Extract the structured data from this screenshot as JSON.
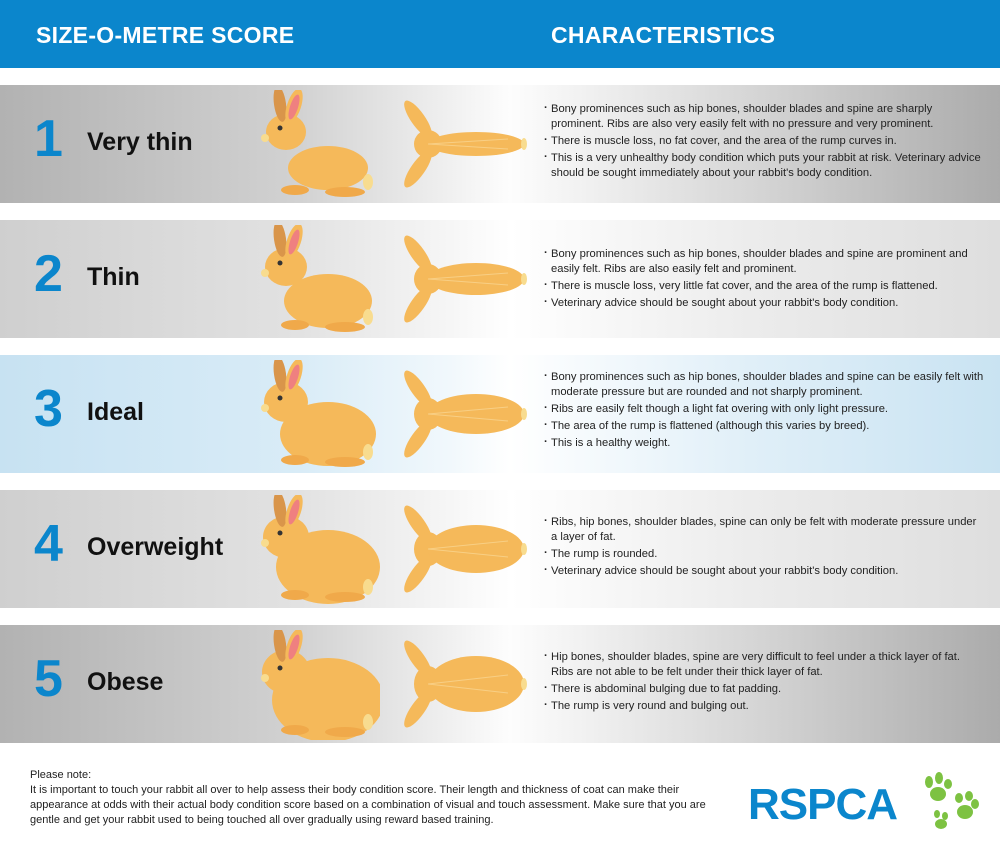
{
  "header": {
    "score_title": "SIZE-O-METRE SCORE",
    "characteristics_title": "CHARACTERISTICS",
    "color": "#0b86cc"
  },
  "rows": [
    {
      "score": "1",
      "label": "Very thin",
      "bullets": [
        "Bony prominences such as hip bones, shoulder blades and spine are sharply prominent. Ribs are also very easily felt with no pressure and very prominent.",
        "There is muscle loss, no fat cover, and the area of the rump curves in.",
        "This is a very unhealthy body condition which puts your rabbit at risk. Veterinary advice should be sought immediately about your rabbit's body condition."
      ]
    },
    {
      "score": "2",
      "label": "Thin",
      "bullets": [
        "Bony prominences such as hip bones, shoulder blades and spine are prominent and easily felt. Ribs are also easily felt and prominent.",
        "There is muscle loss, very little fat cover, and the area of the rump is flattened.",
        "Veterinary advice should be sought about your rabbit's body condition."
      ]
    },
    {
      "score": "3",
      "label": "Ideal",
      "bullets": [
        "Bony prominences such as hip bones, shoulder blades and spine can be easily felt with moderate pressure but are rounded and not sharply prominent.",
        "Ribs are easily felt though a light fat overing with only light pressure.",
        "The area of the rump is flattened (although this varies by breed).",
        "This is a healthy weight."
      ]
    },
    {
      "score": "4",
      "label": "Overweight",
      "bullets": [
        "Ribs, hip bones, shoulder blades, spine can only be felt with moderate pressure under a layer of fat.",
        "The rump is rounded.",
        "Veterinary advice should be sought about your rabbit's body condition."
      ]
    },
    {
      "score": "5",
      "label": "Obese",
      "bullets": [
        "Hip bones, shoulder blades, spine are very difficult to feel under a thick layer of fat. Ribs are not able to be felt under their thick layer of fat.",
        "There is abdominal bulging due to fat padding.",
        "The rump is very round and bulging out."
      ]
    }
  ],
  "note": {
    "heading": "Please note:",
    "text": "It is important to touch your rabbit all over to help assess their body condition score. Their length and thickness of coat can make their appearance at odds with their actual body condition score based on a combination of visual and touch assessment. Make sure that you are gentle and get your rabbit used to being touched all over gradually using reward based training."
  },
  "logo": {
    "text": "RSPCA",
    "paw_color": "#7dc242"
  },
  "rabbit_color": "#f5b95a"
}
